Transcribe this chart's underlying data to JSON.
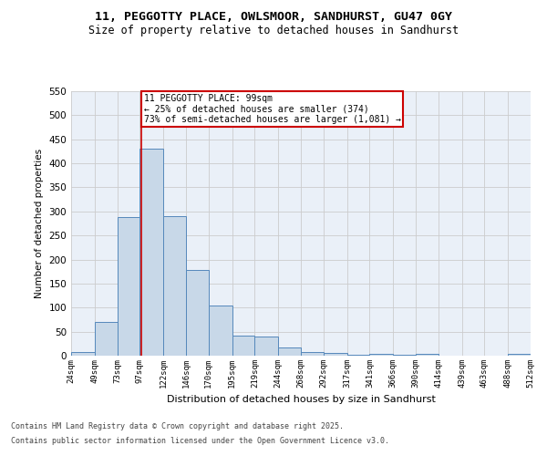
{
  "title_line1": "11, PEGGOTTY PLACE, OWLSMOOR, SANDHURST, GU47 0GY",
  "title_line2": "Size of property relative to detached houses in Sandhurst",
  "xlabel": "Distribution of detached houses by size in Sandhurst",
  "ylabel": "Number of detached properties",
  "bar_edges": [
    24,
    49,
    73,
    97,
    122,
    146,
    170,
    195,
    219,
    244,
    268,
    292,
    317,
    341,
    366,
    390,
    414,
    439,
    463,
    488,
    512
  ],
  "bar_values": [
    7,
    70,
    288,
    430,
    290,
    178,
    105,
    42,
    40,
    18,
    8,
    5,
    2,
    3,
    1,
    4,
    0,
    0,
    0,
    3
  ],
  "bar_color": "#c8d8e8",
  "bar_edgecolor": "#5588bb",
  "grid_color": "#cccccc",
  "bg_color": "#eaf0f8",
  "fig_bg_color": "#ffffff",
  "vline_x": 99,
  "vline_color": "#cc0000",
  "annotation_text": "11 PEGGOTTY PLACE: 99sqm\n← 25% of detached houses are smaller (374)\n73% of semi-detached houses are larger (1,081) →",
  "annotation_box_color": "#ffffff",
  "annotation_box_edgecolor": "#cc0000",
  "ylim": [
    0,
    550
  ],
  "yticks": [
    0,
    50,
    100,
    150,
    200,
    250,
    300,
    350,
    400,
    450,
    500,
    550
  ],
  "footer_line1": "Contains HM Land Registry data © Crown copyright and database right 2025.",
  "footer_line2": "Contains public sector information licensed under the Open Government Licence v3.0.",
  "tick_labels": [
    "24sqm",
    "49sqm",
    "73sqm",
    "97sqm",
    "122sqm",
    "146sqm",
    "170sqm",
    "195sqm",
    "219sqm",
    "244sqm",
    "268sqm",
    "292sqm",
    "317sqm",
    "341sqm",
    "366sqm",
    "390sqm",
    "414sqm",
    "439sqm",
    "463sqm",
    "488sqm",
    "512sqm"
  ]
}
